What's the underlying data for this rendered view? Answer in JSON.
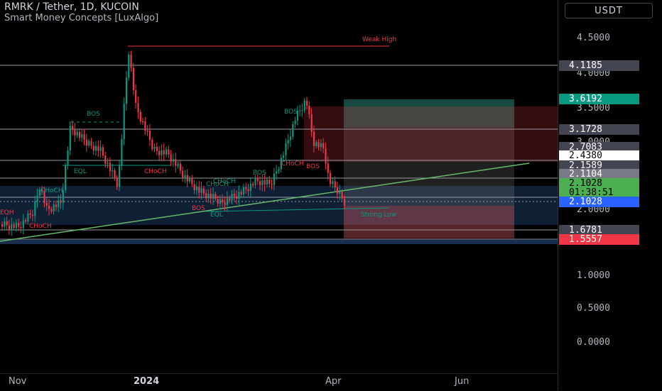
{
  "header": {
    "title": "RMRK / Tether, 1D, KUCOIN",
    "indicator": "Smart Money Concepts [LuxAlgo]",
    "currency": "USDT"
  },
  "price_axis": {
    "ticks": [
      "4.5000",
      "4.0000",
      "3.5000",
      "3.0000",
      "2.0000",
      "1.0000",
      "0.5000",
      "0.0000"
    ]
  },
  "price_labels": [
    {
      "value": "4.1185",
      "bg": "#434651",
      "fg": "#ffffff"
    },
    {
      "value": "3.6192",
      "bg": "#089981",
      "fg": "#ffffff"
    },
    {
      "value": "3.1728",
      "bg": "#434651",
      "fg": "#ffffff"
    },
    {
      "value": "2.7083",
      "bg": "#434651",
      "fg": "#ffffff"
    },
    {
      "value": "2.4380",
      "bg": "#ffffff",
      "fg": "#000000"
    },
    {
      "value": "2.1589",
      "bg": "#434651",
      "fg": "#ffffff"
    },
    {
      "value": "2.1104",
      "bg": "#787b86",
      "fg": "#ffffff"
    },
    {
      "value": "2.1028",
      "bg": "#4caf50",
      "fg": "#000000"
    },
    {
      "value": "01:38:51",
      "bg": "#4caf50",
      "fg": "#000000"
    },
    {
      "value": "2.1028",
      "bg": "#2962ff",
      "fg": "#ffffff"
    },
    {
      "value": "1.6781",
      "bg": "#434651",
      "fg": "#ffffff"
    },
    {
      "value": "1.5557",
      "bg": "#f23645",
      "fg": "#ffffff"
    }
  ],
  "time_axis": [
    {
      "label": "Nov",
      "bold": false
    },
    {
      "label": "2024",
      "bold": true
    },
    {
      "label": "Apr",
      "bold": false
    },
    {
      "label": "Jun",
      "bold": false
    }
  ],
  "smc_labels": [
    {
      "text": "Weak High",
      "color": "#f23645"
    },
    {
      "text": "BOS",
      "color": "#089981"
    },
    {
      "text": "EQL",
      "color": "#089981"
    },
    {
      "text": "CHoCH",
      "color": "#f23645"
    },
    {
      "text": "CHoCH",
      "color": "#089981"
    },
    {
      "text": "BOS",
      "color": "#089981"
    },
    {
      "text": "BOS",
      "color": "#089981"
    },
    {
      "text": "CHoCH",
      "color": "#f23645"
    },
    {
      "text": "BOS",
      "color": "#f23645"
    },
    {
      "text": "CHoCH",
      "color": "#089981"
    },
    {
      "text": "BOS",
      "color": "#f23645"
    },
    {
      "text": "EQL",
      "color": "#089981"
    },
    {
      "text": "Strong Low",
      "color": "#089981"
    },
    {
      "text": "EQH",
      "color": "#f23645"
    },
    {
      "text": "CHoCH",
      "color": "#f23645"
    },
    {
      "text": "CHoCH",
      "color": "#089981"
    }
  ],
  "colors": {
    "up": "#089981",
    "down": "#f23645",
    "trendline": "#66bb6a",
    "background": "#000000"
  }
}
